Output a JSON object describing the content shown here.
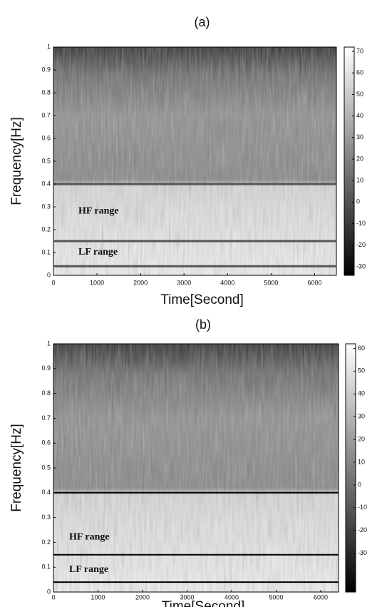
{
  "chart_data": [
    {
      "type": "spectrogram",
      "title": "(a)",
      "xlabel": "Time[Second]",
      "ylabel": "Frequency[Hz]",
      "xlim": [
        0,
        6500
      ],
      "xticks": [
        0,
        1000,
        2000,
        3000,
        4000,
        5000,
        6000
      ],
      "ylim": [
        0,
        1
      ],
      "yticks": [
        0,
        0.1,
        0.2,
        0.3,
        0.4,
        0.5,
        0.6,
        0.7,
        0.8,
        0.9,
        1
      ],
      "colorbar": {
        "lim": [
          -34,
          72
        ],
        "ticks": [
          70,
          60,
          50,
          40,
          30,
          20,
          10,
          0,
          -10,
          -20,
          -30
        ]
      },
      "hlines": [
        0.04,
        0.15,
        0.4
      ],
      "line_color": "#555555",
      "annotations": [
        "HF range",
        "LF range"
      ]
    },
    {
      "type": "spectrogram",
      "title": "(b)",
      "xlabel": "Time[Second]",
      "ylabel": "Frequency[Hz]",
      "xlim": [
        0,
        6400
      ],
      "xticks": [
        0,
        1000,
        2000,
        3000,
        4000,
        5000,
        6000
      ],
      "ylim": [
        0,
        1
      ],
      "yticks": [
        0,
        0.1,
        0.2,
        0.3,
        0.4,
        0.5,
        0.6,
        0.7,
        0.8,
        0.9,
        1
      ],
      "colorbar": {
        "lim": [
          -47,
          62
        ],
        "ticks": [
          60,
          50,
          40,
          30,
          20,
          10,
          0,
          -10,
          -20,
          -30
        ]
      },
      "hlines": [
        0.04,
        0.15,
        0.4
      ],
      "line_color": "#000000",
      "annotations": [
        "HF range",
        "LF range"
      ]
    }
  ]
}
